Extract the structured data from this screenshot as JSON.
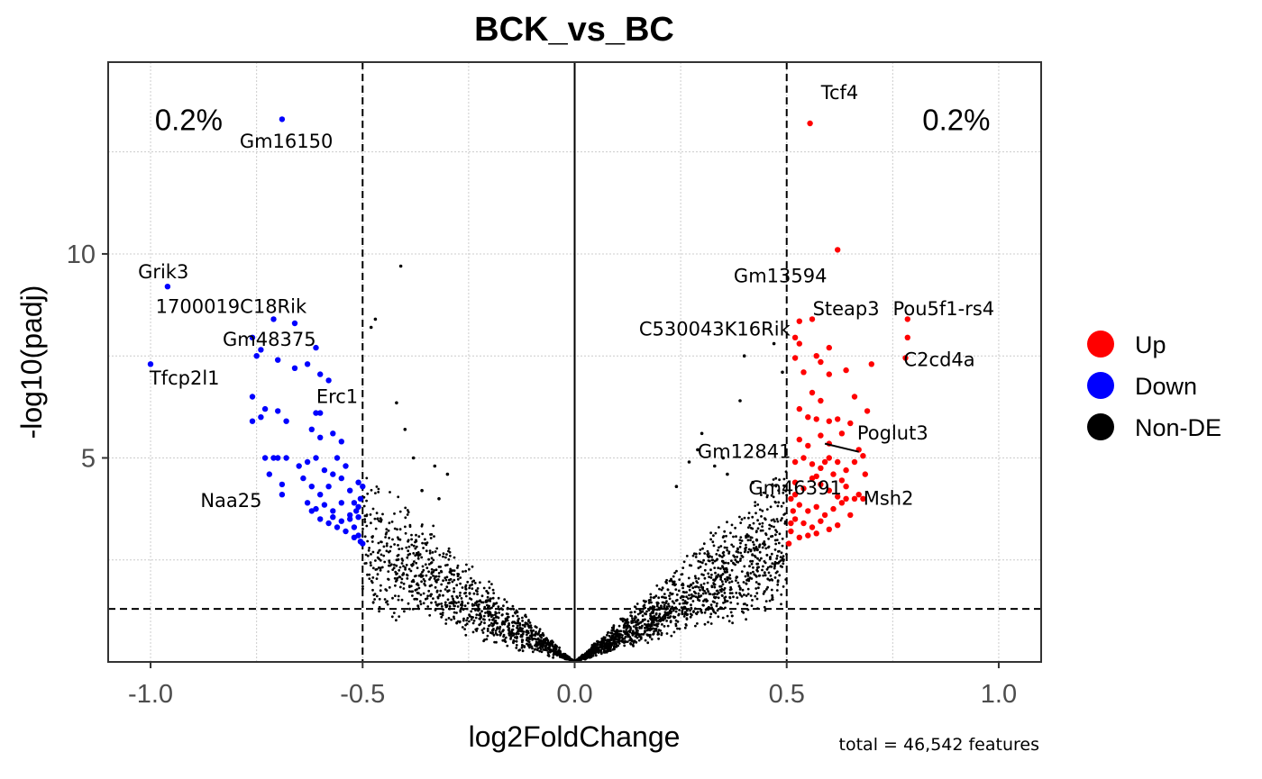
{
  "chart_data": {
    "type": "scatter",
    "title": "BCK_vs_BC",
    "xlabel": "log2FoldChange",
    "ylabel": "-log10(padj)",
    "xlim": [
      -1.1,
      1.1
    ],
    "ylim": [
      0,
      14.7
    ],
    "xticks": [
      -1.0,
      -0.5,
      0.0,
      0.5,
      1.0
    ],
    "xtick_labels": [
      "-1.0",
      "-0.5",
      "0.0",
      "0.5",
      "1.0"
    ],
    "yticks": [
      5,
      10
    ],
    "ytick_labels": [
      "5",
      "10"
    ],
    "thresholds": {
      "log2fc": [
        -0.5,
        0.5
      ],
      "neg_log10_padj": 1.3
    },
    "caption": "total = 46,542 features",
    "percent_labels": [
      {
        "side": "down",
        "text": "0.2%",
        "x": -0.91,
        "y": 13.3
      },
      {
        "side": "up",
        "text": "0.2%",
        "x": 0.9,
        "y": 13.3
      }
    ],
    "legend": [
      {
        "name": "Up",
        "color": "#FF0000"
      },
      {
        "name": "Down",
        "color": "#0000FF"
      },
      {
        "name": "Non-DE",
        "color": "#000000"
      }
    ],
    "colors": {
      "up": "#FF0000",
      "down": "#0000FF",
      "nonde": "#000000"
    },
    "labeled_genes": [
      {
        "gene": "Gm16150",
        "x": -0.69,
        "y": 13.3,
        "group": "down"
      },
      {
        "gene": "Grik3",
        "x": -0.96,
        "y": 9.2,
        "group": "down"
      },
      {
        "gene": "1700019C18Rik",
        "x": -0.71,
        "y": 8.4,
        "group": "down"
      },
      {
        "gene": "Gm48375",
        "x": -0.76,
        "y": 7.95,
        "group": "down"
      },
      {
        "gene": "Tfcp2l1",
        "x": -1.0,
        "y": 7.3,
        "group": "down"
      },
      {
        "gene": "Erc1",
        "x": -0.58,
        "y": 6.9,
        "group": "down"
      },
      {
        "gene": "Naa25",
        "x": -0.69,
        "y": 4.1,
        "group": "down"
      },
      {
        "gene": "Tcf4",
        "x": 0.555,
        "y": 13.2,
        "group": "up"
      },
      {
        "gene": "Gm13594",
        "x": 0.62,
        "y": 10.1,
        "group": "up"
      },
      {
        "gene": "Steap3",
        "x": 0.56,
        "y": 8.4,
        "group": "up"
      },
      {
        "gene": "Pou5f1-rs4",
        "x": 0.785,
        "y": 8.4,
        "group": "up"
      },
      {
        "gene": "C530043K16Rik",
        "x": 0.51,
        "y": 8.35,
        "group": "up"
      },
      {
        "gene": "C2cd4a",
        "x": 0.78,
        "y": 7.45,
        "group": "up"
      },
      {
        "gene": "Poglut3",
        "x": 0.67,
        "y": 5.15,
        "group": "up"
      },
      {
        "gene": "Gm12841",
        "x": 0.67,
        "y": 5.15,
        "group": "up"
      },
      {
        "gene": "Gm46391",
        "x": 0.64,
        "y": 4.6,
        "group": "up"
      },
      {
        "gene": "Msh2",
        "x": 0.68,
        "y": 4.0,
        "group": "up"
      }
    ],
    "series": [
      {
        "name": "Down",
        "points": [
          [
            -0.96,
            9.2
          ],
          [
            -1.0,
            7.3
          ],
          [
            -0.71,
            8.4
          ],
          [
            -0.66,
            8.3
          ],
          [
            -0.76,
            7.95
          ],
          [
            -0.74,
            7.65
          ],
          [
            -0.75,
            7.5
          ],
          [
            -0.69,
            13.3
          ],
          [
            -0.7,
            7.4
          ],
          [
            -0.66,
            7.2
          ],
          [
            -0.61,
            7.7
          ],
          [
            -0.63,
            7.3
          ],
          [
            -0.6,
            7.05
          ],
          [
            -0.58,
            6.9
          ],
          [
            -0.76,
            6.5
          ],
          [
            -0.73,
            6.2
          ],
          [
            -0.76,
            5.9
          ],
          [
            -0.74,
            6.0
          ],
          [
            -0.7,
            6.15
          ],
          [
            -0.68,
            5.9
          ],
          [
            -0.61,
            6.1
          ],
          [
            -0.6,
            6.1
          ],
          [
            -0.62,
            5.7
          ],
          [
            -0.6,
            5.5
          ],
          [
            -0.57,
            5.6
          ],
          [
            -0.55,
            5.4
          ],
          [
            -0.73,
            5.0
          ],
          [
            -0.71,
            5.0
          ],
          [
            -0.7,
            5.0
          ],
          [
            -0.68,
            5.0
          ],
          [
            -0.72,
            4.6
          ],
          [
            -0.69,
            4.35
          ],
          [
            -0.69,
            4.1
          ],
          [
            -0.65,
            4.8
          ],
          [
            -0.63,
            4.9
          ],
          [
            -0.61,
            5.0
          ],
          [
            -0.59,
            4.7
          ],
          [
            -0.56,
            5.0
          ],
          [
            -0.54,
            4.8
          ],
          [
            -0.64,
            4.5
          ],
          [
            -0.62,
            4.3
          ],
          [
            -0.6,
            4.1
          ],
          [
            -0.58,
            4.3
          ],
          [
            -0.57,
            4.6
          ],
          [
            -0.55,
            4.5
          ],
          [
            -0.53,
            4.2
          ],
          [
            -0.51,
            4.4
          ],
          [
            -0.63,
            3.9
          ],
          [
            -0.61,
            3.75
          ],
          [
            -0.59,
            3.85
          ],
          [
            -0.57,
            3.7
          ],
          [
            -0.55,
            3.9
          ],
          [
            -0.53,
            3.6
          ],
          [
            -0.51,
            3.8
          ],
          [
            -0.52,
            3.3
          ],
          [
            -0.58,
            3.4
          ],
          [
            -0.56,
            3.3
          ],
          [
            -0.54,
            3.2
          ],
          [
            -0.51,
            3.1
          ],
          [
            -0.505,
            2.95
          ],
          [
            -0.5,
            2.9
          ],
          [
            -0.52,
            3.05
          ],
          [
            -0.62,
            3.7
          ],
          [
            -0.6,
            3.5
          ],
          [
            -0.57,
            3.55
          ],
          [
            -0.55,
            3.45
          ],
          [
            -0.53,
            3.5
          ],
          [
            -0.51,
            3.55
          ],
          [
            -0.515,
            3.7
          ],
          [
            -0.52,
            3.9
          ],
          [
            -0.505,
            4.0
          ],
          [
            -0.5,
            4.3
          ]
        ]
      },
      {
        "name": "Up",
        "points": [
          [
            0.555,
            13.2
          ],
          [
            0.62,
            10.1
          ],
          [
            0.785,
            8.4
          ],
          [
            0.785,
            7.95
          ],
          [
            0.78,
            7.45
          ],
          [
            0.56,
            8.4
          ],
          [
            0.53,
            8.35
          ],
          [
            0.52,
            7.95
          ],
          [
            0.53,
            7.8
          ],
          [
            0.6,
            7.7
          ],
          [
            0.57,
            7.5
          ],
          [
            0.58,
            7.35
          ],
          [
            0.7,
            7.3
          ],
          [
            0.52,
            7.45
          ],
          [
            0.54,
            7.1
          ],
          [
            0.6,
            7.05
          ],
          [
            0.64,
            7.15
          ],
          [
            0.56,
            6.6
          ],
          [
            0.58,
            6.4
          ],
          [
            0.66,
            6.5
          ],
          [
            0.53,
            6.2
          ],
          [
            0.55,
            6.0
          ],
          [
            0.57,
            5.95
          ],
          [
            0.6,
            5.9
          ],
          [
            0.62,
            5.95
          ],
          [
            0.65,
            5.85
          ],
          [
            0.69,
            6.15
          ],
          [
            0.67,
            5.2
          ],
          [
            0.68,
            5.05
          ],
          [
            0.53,
            5.45
          ],
          [
            0.55,
            5.3
          ],
          [
            0.58,
            5.55
          ],
          [
            0.6,
            5.35
          ],
          [
            0.63,
            5.6
          ],
          [
            0.52,
            4.9
          ],
          [
            0.54,
            5.0
          ],
          [
            0.56,
            4.85
          ],
          [
            0.58,
            4.75
          ],
          [
            0.6,
            5.0
          ],
          [
            0.62,
            4.9
          ],
          [
            0.64,
            4.7
          ],
          [
            0.66,
            4.9
          ],
          [
            0.685,
            4.6
          ],
          [
            0.52,
            4.4
          ],
          [
            0.54,
            4.25
          ],
          [
            0.56,
            4.5
          ],
          [
            0.58,
            4.35
          ],
          [
            0.6,
            4.2
          ],
          [
            0.62,
            4.05
          ],
          [
            0.64,
            4.3
          ],
          [
            0.66,
            4.0
          ],
          [
            0.68,
            4.0
          ],
          [
            0.51,
            4.0
          ],
          [
            0.53,
            3.85
          ],
          [
            0.55,
            3.7
          ],
          [
            0.57,
            3.8
          ],
          [
            0.59,
            3.6
          ],
          [
            0.61,
            3.75
          ],
          [
            0.63,
            3.9
          ],
          [
            0.65,
            3.6
          ],
          [
            0.67,
            4.1
          ],
          [
            0.52,
            3.5
          ],
          [
            0.54,
            3.4
          ],
          [
            0.56,
            3.3
          ],
          [
            0.58,
            3.45
          ],
          [
            0.6,
            3.25
          ],
          [
            0.62,
            3.35
          ],
          [
            0.51,
            3.2
          ],
          [
            0.53,
            3.05
          ],
          [
            0.55,
            3.1
          ],
          [
            0.57,
            3.15
          ],
          [
            0.505,
            2.9
          ],
          [
            0.51,
            3.4
          ],
          [
            0.515,
            3.7
          ],
          [
            0.52,
            4.1
          ],
          [
            0.57,
            4.55
          ],
          [
            0.59,
            4.9
          ],
          [
            0.61,
            4.6
          ],
          [
            0.63,
            4.45
          ],
          [
            0.64,
            4.0
          ]
        ]
      },
      {
        "name": "Non-DE",
        "points": [
          [
            -0.41,
            9.7
          ],
          [
            -0.47,
            8.4
          ],
          [
            -0.48,
            8.2
          ],
          [
            -0.42,
            6.35
          ],
          [
            -0.4,
            5.7
          ],
          [
            -0.38,
            5.0
          ],
          [
            -0.33,
            4.8
          ],
          [
            -0.3,
            4.6
          ],
          [
            -0.36,
            4.2
          ],
          [
            -0.32,
            4.0
          ],
          [
            0.47,
            7.8
          ],
          [
            0.4,
            7.5
          ],
          [
            0.49,
            7.1
          ],
          [
            0.39,
            6.4
          ],
          [
            0.3,
            5.6
          ],
          [
            0.29,
            5.2
          ],
          [
            0.35,
            5.0
          ],
          [
            0.33,
            4.8
          ],
          [
            0.27,
            4.9
          ],
          [
            0.24,
            4.3
          ],
          [
            0.36,
            4.6
          ],
          [
            0.42,
            4.4
          ]
        ]
      }
    ]
  }
}
